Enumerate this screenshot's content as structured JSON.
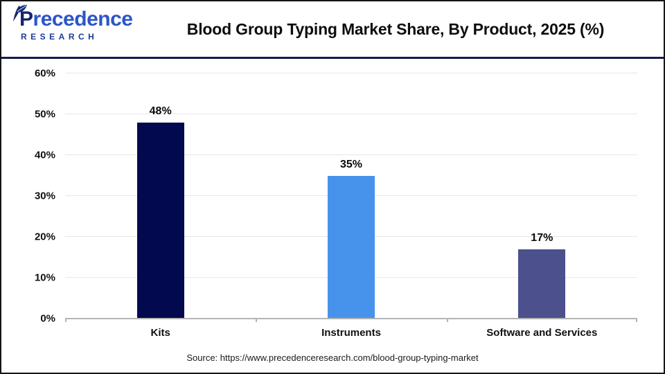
{
  "header": {
    "logo": {
      "brand": "Precedence",
      "sub_brand": "R E S E A R C H_DISPLAYED_AS_RESEARCH",
      "sub_brand_text": "RESEARCH"
    },
    "title": "Blood Group Typing Market Share, By Product, 2025 (%)"
  },
  "chart_data": {
    "type": "bar",
    "title": "Blood Group Typing Market Share, By Product, 2025 (%)",
    "categories": [
      "Kits",
      "Instruments",
      "Software and Services"
    ],
    "values": [
      48,
      35,
      17
    ],
    "value_labels": [
      "48%",
      "35%",
      "17%"
    ],
    "bar_colors": [
      "#03094e",
      "#4793ec",
      "#4c508d"
    ],
    "xlabel": "",
    "ylabel": "",
    "ylim": [
      0,
      60
    ],
    "ytick_step": 10,
    "ytick_labels": [
      "0%",
      "10%",
      "20%",
      "30%",
      "40%",
      "50%",
      "60%"
    ],
    "grid": "horizontal",
    "legend": "none"
  },
  "footer": {
    "source": "Source: https://www.precedenceresearch.com/blood-group-typing-market"
  },
  "colors": {
    "bar_kits": "#03094e",
    "bar_instruments": "#4793ec",
    "bar_software_services": "#4c508d",
    "gridline": "#e7e7e7",
    "axis": "#b4b4b4",
    "header_separator": "#131b4c",
    "brand_navy": "#16246e",
    "brand_blue": "#2b55c8",
    "title_text": "#0d0d0d"
  }
}
